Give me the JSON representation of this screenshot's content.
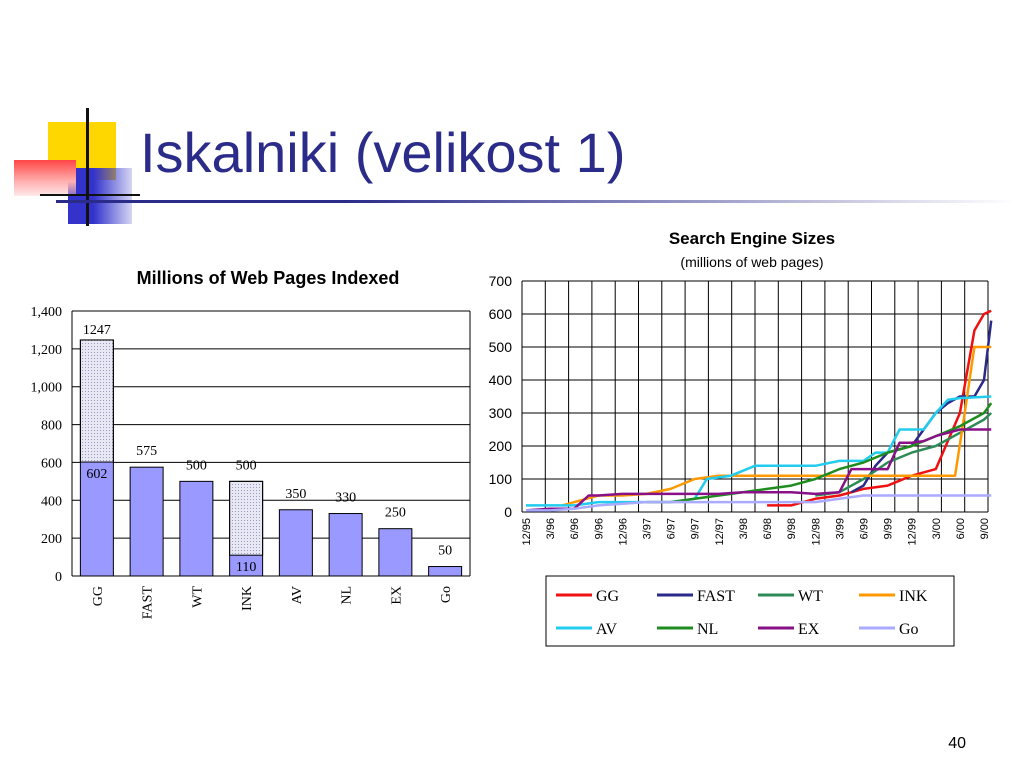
{
  "slide": {
    "title": "Iskalniki (velikost 1)",
    "page_number": "40",
    "accent_colors": {
      "title": "#2b2b8a",
      "yellow": "#ffd700",
      "red": "#ff3333",
      "blue": "#3333cc"
    }
  },
  "chart_data": [
    {
      "type": "bar",
      "title": "Millions of Web Pages Indexed",
      "categories": [
        "GG",
        "FAST",
        "WT",
        "INK",
        "AV",
        "NL",
        "EX",
        "Go"
      ],
      "series": [
        {
          "values": [
            602,
            575,
            500,
            110,
            350,
            330,
            250,
            50
          ],
          "color": "#9999ff"
        },
        {
          "values": [
            645,
            0,
            0,
            390,
            0,
            0,
            0,
            0
          ],
          "color": "#dcdcf0",
          "pattern": "dotted"
        }
      ],
      "bar_labels": [
        "1247",
        "575",
        "500",
        "500",
        "350",
        "330",
        "250",
        "50"
      ],
      "inner_labels": [
        "602",
        "",
        "",
        "110",
        "",
        "",
        "",
        ""
      ],
      "yticks": [
        "0",
        "200",
        "400",
        "600",
        "800",
        "1,000",
        "1,200",
        "1,400"
      ],
      "ylim": [
        0,
        1400
      ],
      "grid": true
    },
    {
      "type": "line",
      "title": "Search Engine Sizes",
      "subtitle": "(millions of web pages)",
      "x": [
        "12/95",
        "3/96",
        "6/96",
        "9/96",
        "12/96",
        "3/97",
        "6/97",
        "9/97",
        "12/97",
        "3/98",
        "6/98",
        "9/98",
        "12/98",
        "3/99",
        "6/99",
        "9/99",
        "12/99",
        "3/00",
        "6/00",
        "9/00"
      ],
      "yticks": [
        "0",
        "100",
        "200",
        "300",
        "400",
        "500",
        "600",
        "700"
      ],
      "ylim": [
        0,
        700
      ],
      "grid": true,
      "legend_position": "bottom",
      "series": [
        {
          "name": "GG",
          "color": "#ee1111",
          "points": [
            [
              10,
              20
            ],
            [
              11,
              20
            ],
            [
              12,
              40
            ],
            [
              13,
              50
            ],
            [
              14,
              70
            ],
            [
              15,
              80
            ],
            [
              16,
              110
            ],
            [
              17,
              130
            ],
            [
              18,
              300
            ],
            [
              18.6,
              550
            ],
            [
              19,
              600
            ],
            [
              19.3,
              610
            ]
          ]
        },
        {
          "name": "FAST",
          "color": "#2a2a8a",
          "points": [
            [
              13.5,
              60
            ],
            [
              14,
              80
            ],
            [
              14.5,
              140
            ],
            [
              15,
              180
            ],
            [
              16,
              200
            ],
            [
              16.5,
              250
            ],
            [
              17,
              300
            ],
            [
              17.5,
              330
            ],
            [
              18,
              350
            ],
            [
              18.6,
              350
            ],
            [
              19,
              400
            ],
            [
              19.3,
              580
            ]
          ]
        },
        {
          "name": "WT",
          "color": "#2e8b57",
          "points": [
            [
              12,
              50
            ],
            [
              13,
              60
            ],
            [
              14,
              100
            ],
            [
              15,
              150
            ],
            [
              16,
              180
            ],
            [
              17,
              200
            ],
            [
              18,
              240
            ],
            [
              19,
              280
            ],
            [
              19.3,
              300
            ]
          ]
        },
        {
          "name": "INK",
          "color": "#ff9900",
          "points": [
            [
              1.5,
              20
            ],
            [
              2.5,
              40
            ],
            [
              3,
              50
            ],
            [
              4,
              50
            ],
            [
              5,
              55
            ],
            [
              6,
              70
            ],
            [
              7,
              100
            ],
            [
              8,
              110
            ],
            [
              9,
              110
            ],
            [
              10,
              110
            ],
            [
              11,
              110
            ],
            [
              12,
              110
            ],
            [
              13,
              110
            ],
            [
              14,
              110
            ],
            [
              15,
              110
            ],
            [
              16,
              110
            ],
            [
              17,
              110
            ],
            [
              17.8,
              110
            ],
            [
              18.2,
              300
            ],
            [
              18.6,
              500
            ],
            [
              19.3,
              500
            ]
          ]
        },
        {
          "name": "AV",
          "color": "#22ccee",
          "points": [
            [
              0,
              20
            ],
            [
              1,
              20
            ],
            [
              2,
              20
            ],
            [
              3,
              30
            ],
            [
              4,
              30
            ],
            [
              5,
              30
            ],
            [
              6,
              30
            ],
            [
              7,
              40
            ],
            [
              7.5,
              100
            ],
            [
              8.5,
              110
            ],
            [
              9.5,
              140
            ],
            [
              10,
              140
            ],
            [
              11,
              140
            ],
            [
              12,
              140
            ],
            [
              13,
              155
            ],
            [
              14,
              155
            ],
            [
              14.5,
              180
            ],
            [
              15,
              180
            ],
            [
              15.5,
              250
            ],
            [
              16,
              250
            ],
            [
              16.5,
              250
            ],
            [
              17,
              300
            ],
            [
              17.5,
              340
            ],
            [
              18,
              345
            ],
            [
              19.3,
              350
            ]
          ]
        },
        {
          "name": "NL",
          "color": "#1e8c1e",
          "points": [
            [
              5,
              30
            ],
            [
              6,
              30
            ],
            [
              7,
              40
            ],
            [
              8,
              50
            ],
            [
              9,
              60
            ],
            [
              10,
              70
            ],
            [
              11,
              80
            ],
            [
              12,
              100
            ],
            [
              13,
              130
            ],
            [
              14,
              150
            ],
            [
              15,
              180
            ],
            [
              16,
              200
            ],
            [
              17,
              230
            ],
            [
              18,
              260
            ],
            [
              19,
              300
            ],
            [
              19.3,
              330
            ]
          ]
        },
        {
          "name": "EX",
          "color": "#881188",
          "points": [
            [
              0,
              5
            ],
            [
              1,
              10
            ],
            [
              2,
              10
            ],
            [
              2.6,
              50
            ],
            [
              3,
              50
            ],
            [
              4,
              55
            ],
            [
              5,
              55
            ],
            [
              6,
              55
            ],
            [
              7,
              55
            ],
            [
              8,
              55
            ],
            [
              9,
              60
            ],
            [
              10,
              60
            ],
            [
              11,
              60
            ],
            [
              12,
              55
            ],
            [
              13,
              60
            ],
            [
              13.5,
              130
            ],
            [
              14,
              130
            ],
            [
              15,
              130
            ],
            [
              15.5,
              210
            ],
            [
              16,
              210
            ],
            [
              16.5,
              215
            ],
            [
              17,
              230
            ],
            [
              18,
              250
            ],
            [
              19.3,
              250
            ]
          ]
        },
        {
          "name": "Go",
          "color": "#aaaaff",
          "points": [
            [
              0,
              5
            ],
            [
              1,
              5
            ],
            [
              2,
              10
            ],
            [
              3,
              20
            ],
            [
              4,
              25
            ],
            [
              5,
              30
            ],
            [
              6,
              30
            ],
            [
              7,
              30
            ],
            [
              8,
              30
            ],
            [
              9,
              30
            ],
            [
              10,
              30
            ],
            [
              11,
              30
            ],
            [
              12,
              30
            ],
            [
              13,
              40
            ],
            [
              14,
              50
            ],
            [
              15,
              50
            ],
            [
              16,
              50
            ],
            [
              17,
              50
            ],
            [
              18,
              50
            ],
            [
              19,
              50
            ],
            [
              19.3,
              50
            ]
          ]
        }
      ]
    }
  ]
}
